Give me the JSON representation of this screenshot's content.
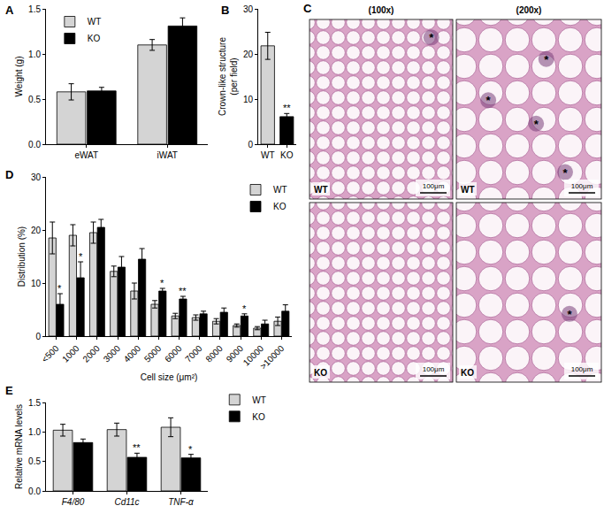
{
  "chart_data": [
    {
      "panel_label": "A",
      "type": "bar",
      "categories": [
        "eWAT",
        "iWAT"
      ],
      "ylabel": "Weight (g)",
      "ylim": [
        0,
        1.5
      ],
      "yticks": [
        {
          "value": 0,
          "label": "0.0"
        },
        0.5,
        {
          "value": 1,
          "label": "1.0"
        },
        {
          "value": 1.5,
          "label": "1.5"
        }
      ],
      "legend": "upper left",
      "series": [
        {
          "name": "WT",
          "color": "#d4d4d4",
          "values": [
            0.58,
            1.1
          ],
          "errors": [
            0.09,
            0.06
          ]
        },
        {
          "name": "KO",
          "color": "#000000",
          "values": [
            0.59,
            1.31
          ],
          "errors": [
            0.04,
            0.09
          ]
        }
      ]
    },
    {
      "panel_label": "B",
      "type": "bar",
      "categories": [
        "WT",
        "KO"
      ],
      "ylabel": [
        "Crown-like structure",
        "(per field)"
      ],
      "ylim": [
        0,
        30
      ],
      "yticks": [
        0,
        10,
        20,
        30
      ],
      "values": [
        21.8,
        6.1
      ],
      "errors": [
        3.0,
        0.7
      ],
      "colors": [
        "#d4d4d4",
        "#000000"
      ],
      "annotations": [
        {
          "category": "KO",
          "text": "**"
        }
      ]
    },
    {
      "panel_label": "D",
      "type": "bar",
      "categories": [
        "<500",
        "1000",
        "2000",
        "3000",
        "4000",
        "5000",
        "6000",
        "7000",
        "8000",
        "9000",
        "10000",
        ">10000"
      ],
      "xlabel": "Cell size (μm²)",
      "ylabel": "Distribution (%)",
      "ylim": [
        0,
        30
      ],
      "yticks": [
        0,
        10,
        20,
        30
      ],
      "legend": "upper right",
      "series": [
        {
          "name": "WT",
          "color": "#d4d4d4",
          "values": [
            18.5,
            19.0,
            19.5,
            12.2,
            8.5,
            6.0,
            3.8,
            3.5,
            2.8,
            2.0,
            1.5,
            2.8
          ],
          "errors": [
            3.0,
            2.0,
            2.0,
            1.0,
            1.5,
            0.7,
            0.5,
            0.5,
            0.5,
            0.3,
            0.3,
            0.8
          ]
        },
        {
          "name": "KO",
          "color": "#000000",
          "values": [
            6.0,
            11.0,
            20.5,
            13.0,
            14.5,
            8.5,
            7.0,
            4.2,
            4.5,
            3.8,
            2.3,
            4.7
          ],
          "errors": [
            2.0,
            3.0,
            1.5,
            2.0,
            2.0,
            0.5,
            0.5,
            0.5,
            0.8,
            0.4,
            0.7,
            1.2
          ]
        }
      ],
      "annotations": [
        {
          "category": "<500",
          "series": "KO",
          "text": "*"
        },
        {
          "category": "1000",
          "series": "KO",
          "text": "*"
        },
        {
          "category": "5000",
          "series": "KO",
          "text": "*"
        },
        {
          "category": "6000",
          "series": "KO",
          "text": "**"
        },
        {
          "category": "9000",
          "series": "KO",
          "text": "*"
        }
      ]
    },
    {
      "panel_label": "E",
      "type": "bar",
      "categories": [
        "F4/80",
        "Cd11c",
        "TNF-α"
      ],
      "ylabel": "Relative mRNA levels",
      "ylim": [
        0,
        1.5
      ],
      "yticks": [
        {
          "value": 0,
          "label": "0.0"
        },
        0.5,
        {
          "value": 1,
          "label": "1.0"
        },
        {
          "value": 1.5,
          "label": "1.5"
        }
      ],
      "legend": "right",
      "series": [
        {
          "name": "WT",
          "color": "#d4d4d4",
          "values": [
            1.03,
            1.04,
            1.08
          ],
          "errors": [
            0.1,
            0.11,
            0.16
          ]
        },
        {
          "name": "KO",
          "color": "#000000",
          "values": [
            0.82,
            0.57,
            0.56
          ],
          "errors": [
            0.06,
            0.07,
            0.06
          ]
        }
      ],
      "annotations": [
        {
          "category": "Cd11c",
          "series": "KO",
          "text": "**"
        },
        {
          "category": "TNF-α",
          "series": "KO",
          "text": "*"
        }
      ]
    }
  ],
  "image_panel": {
    "panel_label": "C",
    "column_titles": [
      "(100x)",
      "(200x)"
    ],
    "images": [
      {
        "label": "WT",
        "scale_bar": "100μm",
        "marks": [
          "*"
        ]
      },
      {
        "label": "WT",
        "scale_bar": "100μm",
        "marks": [
          "*",
          "*",
          "*",
          "*"
        ]
      },
      {
        "label": "KO",
        "scale_bar": "100μm",
        "marks": []
      },
      {
        "label": "KO",
        "scale_bar": "100μm",
        "marks": [
          "*"
        ]
      }
    ]
  }
}
